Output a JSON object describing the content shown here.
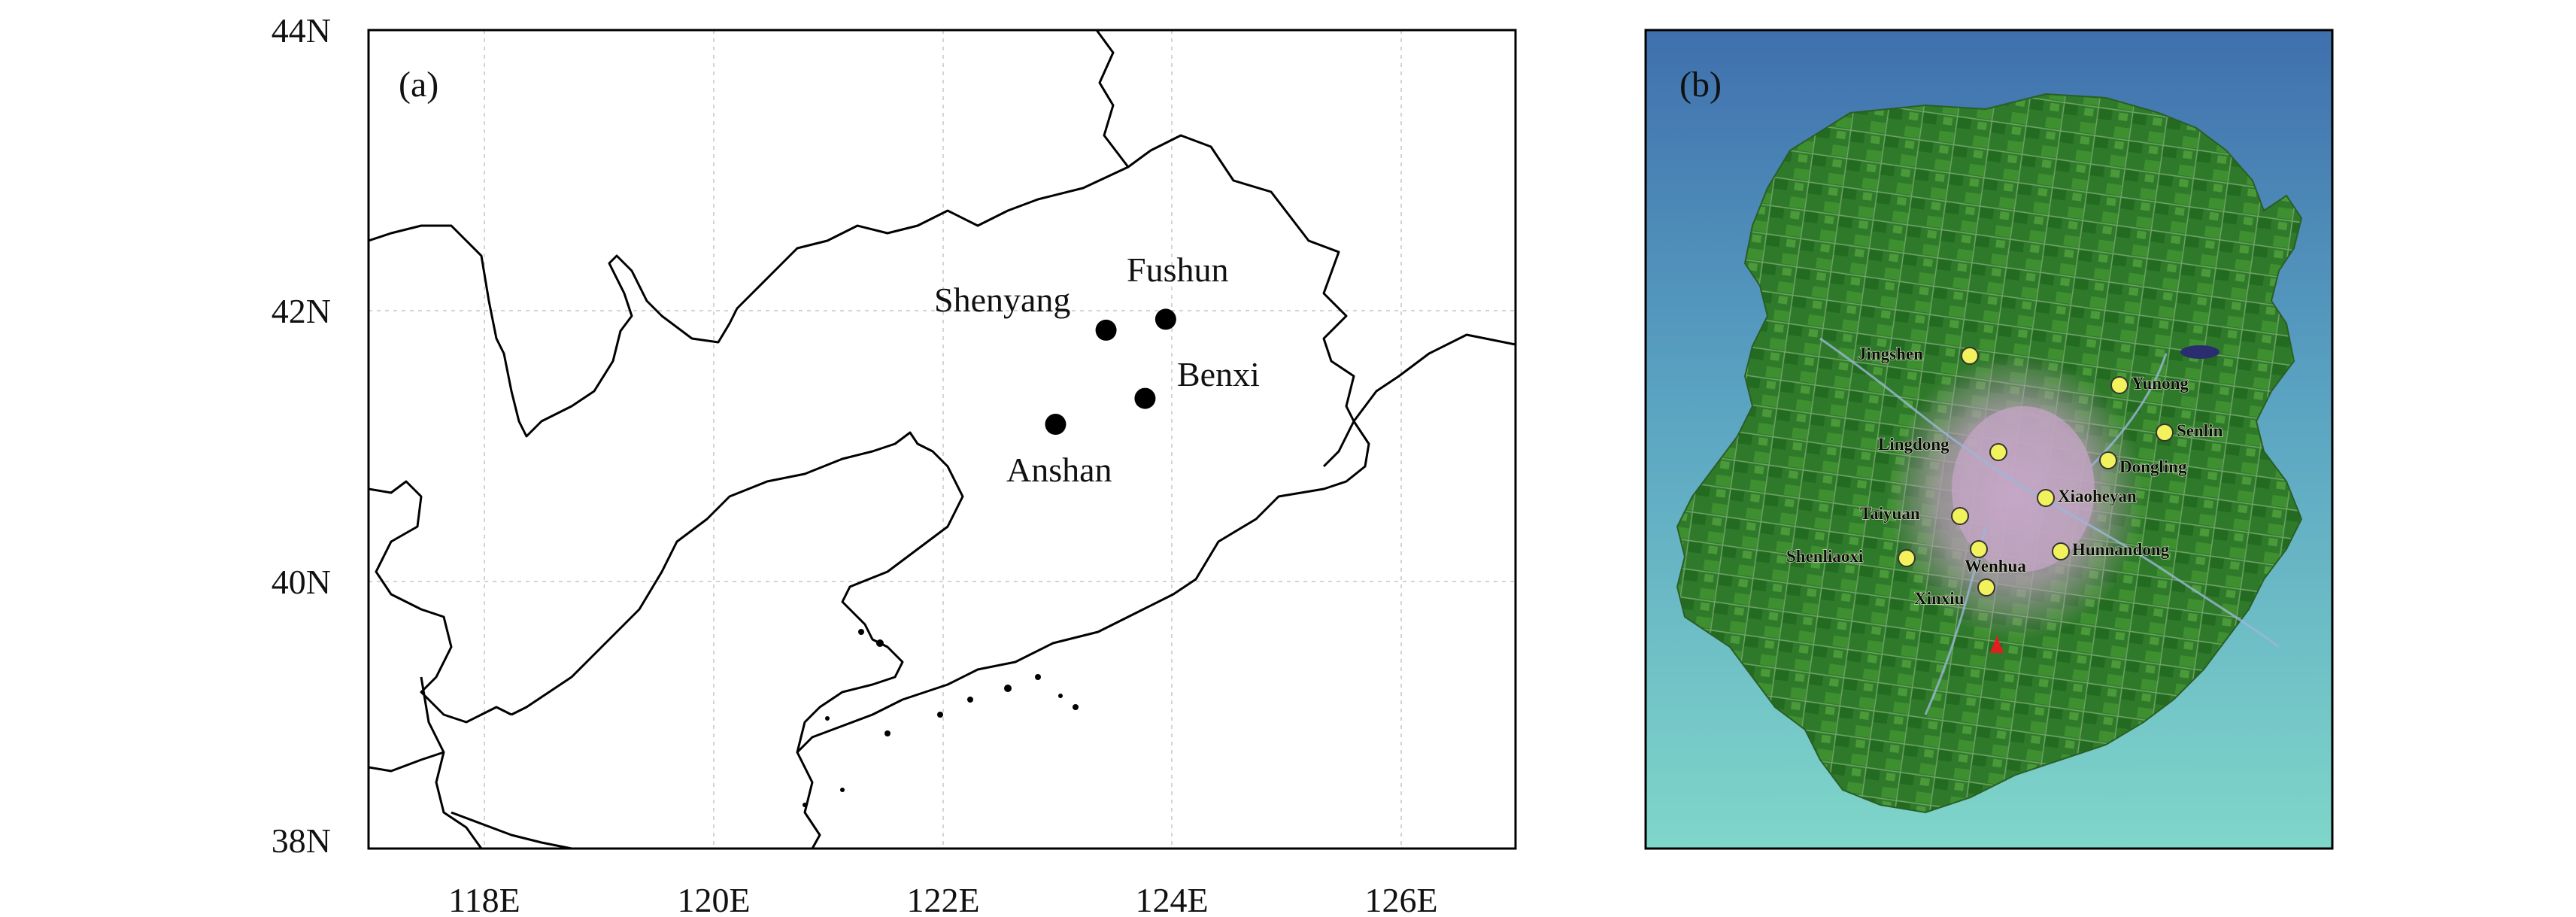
{
  "panel_a": {
    "label": "(a)",
    "lat_ticks": [
      "44N",
      "42N",
      "40N",
      "38N"
    ],
    "lon_ticks": [
      "118E",
      "120E",
      "122E",
      "124E",
      "126E"
    ],
    "cities": [
      {
        "name": "Shenyang",
        "lon": 123.43,
        "lat": 41.8
      },
      {
        "name": "Fushun",
        "lon": 123.95,
        "lat": 41.88
      },
      {
        "name": "Benxi",
        "lon": 123.77,
        "lat": 41.3
      },
      {
        "name": "Anshan",
        "lon": 122.99,
        "lat": 41.11
      }
    ]
  },
  "panel_b": {
    "label": "(b)",
    "stations": [
      {
        "name": "Jingshen"
      },
      {
        "name": "Yunong"
      },
      {
        "name": "Senlin"
      },
      {
        "name": "Lingdong"
      },
      {
        "name": "Dongling"
      },
      {
        "name": "Xiaoheyan"
      },
      {
        "name": "Taiyuan"
      },
      {
        "name": "Hunnandong"
      },
      {
        "name": "Shenliaoxi"
      },
      {
        "name": "Wenhua"
      },
      {
        "name": "Xinxiu"
      }
    ]
  }
}
